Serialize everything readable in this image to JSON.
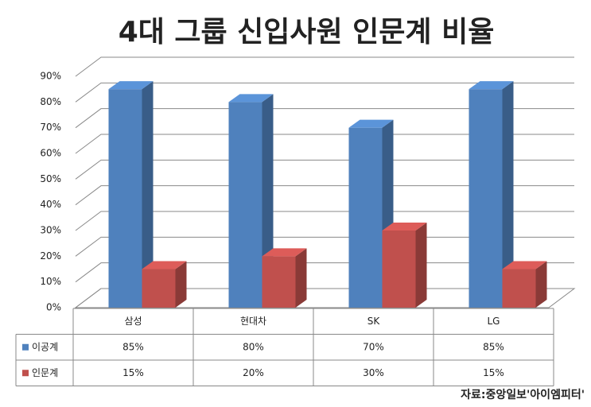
{
  "chart_data": {
    "type": "bar3d",
    "title": "4대 그룹 신입사원 인문계 비율",
    "categories": [
      "삼성",
      "현대차",
      "SK",
      "LG"
    ],
    "series": [
      {
        "name": "이공계",
        "color": "#4f81bd",
        "values": [
          85,
          80,
          70,
          85
        ],
        "value_labels": [
          "85%",
          "80%",
          "70%",
          "85%"
        ]
      },
      {
        "name": "인문계",
        "color": "#c0504d",
        "values": [
          15,
          20,
          30,
          15
        ],
        "value_labels": [
          "15%",
          "20%",
          "30%",
          "15%"
        ]
      }
    ],
    "ylim": [
      0,
      90
    ],
    "yticks": [
      {
        "value": 0,
        "label": "0%"
      },
      {
        "value": 10,
        "label": "10%"
      },
      {
        "value": 20,
        "label": "20%"
      },
      {
        "value": 30,
        "label": "30%"
      },
      {
        "value": 40,
        "label": "40%"
      },
      {
        "value": 50,
        "label": "50%"
      },
      {
        "value": 60,
        "label": "60%"
      },
      {
        "value": 70,
        "label": "70%"
      },
      {
        "value": 80,
        "label": "80%"
      },
      {
        "value": 90,
        "label": "90%"
      }
    ],
    "grid": true,
    "source": "자료:중앙일보'아이엠피터'"
  }
}
